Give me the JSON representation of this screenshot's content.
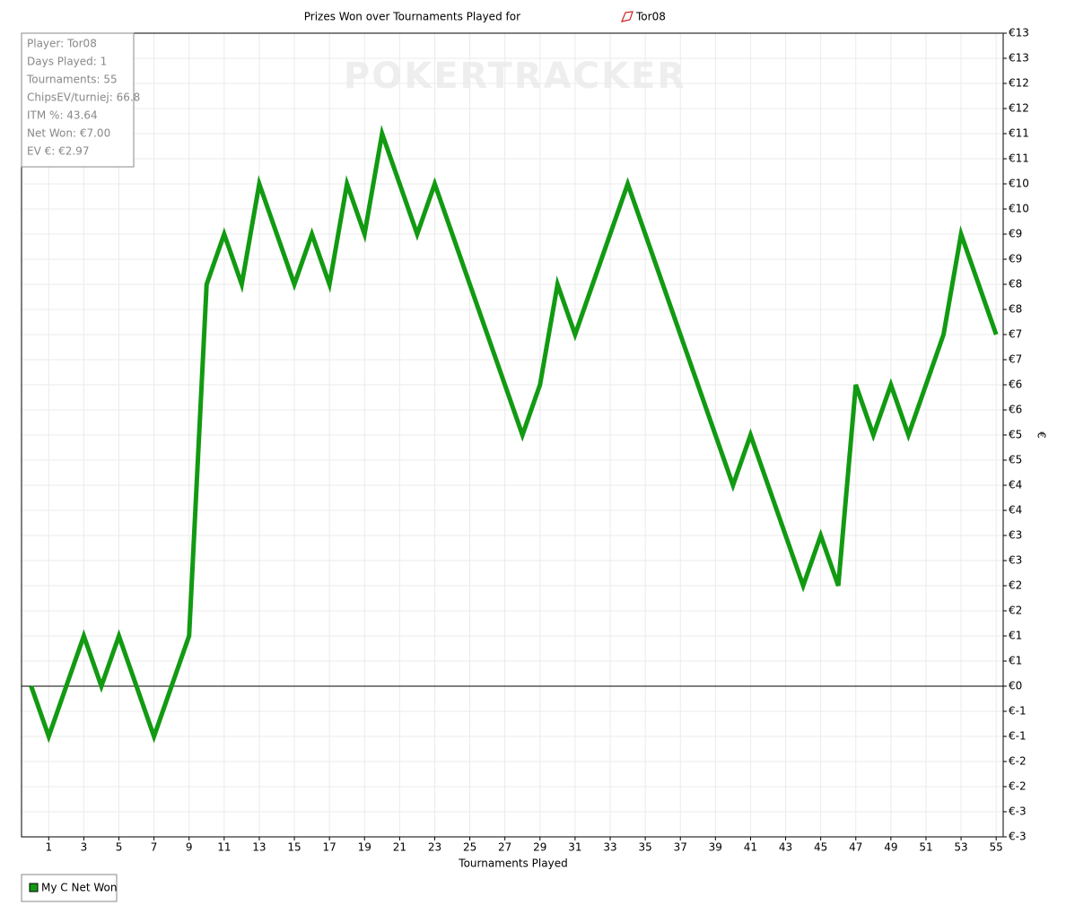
{
  "chart_data": {
    "type": "line",
    "title": "Prizes Won over Tournaments Played for",
    "title_player": "Tor08",
    "x_label": "Tournaments Played",
    "y_label": "€",
    "watermark": "POKERTRACKER",
    "info": [
      "Player: Tor08",
      "Days Played: 1",
      "Tournaments: 55",
      "ChipsEV/turniej: 66.8",
      "ITM %: 43.64",
      "Net Won: €7.00",
      "EV €: €2.97"
    ],
    "x": [
      0,
      1,
      2,
      3,
      4,
      5,
      6,
      7,
      8,
      9,
      10,
      11,
      12,
      13,
      14,
      15,
      16,
      17,
      18,
      19,
      20,
      21,
      22,
      23,
      24,
      25,
      26,
      27,
      28,
      29,
      30,
      31,
      32,
      33,
      34,
      35,
      36,
      37,
      38,
      39,
      40,
      41,
      42,
      43,
      44,
      45,
      46,
      47,
      48,
      49,
      50,
      51,
      52,
      53,
      54,
      55
    ],
    "series": [
      {
        "name": "My C Net Won",
        "color": "#129a12",
        "values": [
          0,
          -1,
          0,
          1,
          0,
          1,
          0,
          -1,
          0,
          1,
          8,
          9,
          8,
          10,
          9,
          8,
          9,
          8,
          10,
          9,
          11,
          10,
          9,
          10,
          9,
          8,
          7,
          6,
          5,
          6,
          8,
          7,
          8,
          9,
          10,
          9,
          8,
          7,
          6,
          5,
          4,
          5,
          4,
          3,
          2,
          3,
          2,
          6,
          5,
          6,
          5,
          6,
          7,
          9,
          8,
          7
        ]
      }
    ],
    "xlim": [
      -0.55,
      55.4
    ],
    "xticks": [
      1,
      3,
      5,
      7,
      9,
      11,
      13,
      15,
      17,
      19,
      21,
      23,
      25,
      27,
      29,
      31,
      33,
      35,
      37,
      39,
      41,
      43,
      45,
      47,
      49,
      51,
      53,
      55
    ],
    "ylim": [
      -3,
      13
    ],
    "yticks": [
      {
        "value": -3,
        "label": "€-3"
      },
      {
        "value": -2.5,
        "label": "€-3"
      },
      {
        "value": -2,
        "label": "€-2"
      },
      {
        "value": -1.5,
        "label": "€-2"
      },
      {
        "value": -1,
        "label": "€-1"
      },
      {
        "value": -0.5,
        "label": "€-1"
      },
      {
        "value": 0,
        "label": "€0"
      },
      {
        "value": 0.5,
        "label": "€1"
      },
      {
        "value": 1,
        "label": "€1"
      },
      {
        "value": 1.5,
        "label": "€2"
      },
      {
        "value": 2,
        "label": "€2"
      },
      {
        "value": 2.5,
        "label": "€3"
      },
      {
        "value": 3,
        "label": "€3"
      },
      {
        "value": 3.5,
        "label": "€4"
      },
      {
        "value": 4,
        "label": "€4"
      },
      {
        "value": 4.5,
        "label": "€5"
      },
      {
        "value": 5,
        "label": "€5"
      },
      {
        "value": 5.5,
        "label": "€6"
      },
      {
        "value": 6,
        "label": "€6"
      },
      {
        "value": 6.5,
        "label": "€7"
      },
      {
        "value": 7,
        "label": "€7"
      },
      {
        "value": 7.5,
        "label": "€8"
      },
      {
        "value": 8,
        "label": "€8"
      },
      {
        "value": 8.5,
        "label": "€9"
      },
      {
        "value": 9,
        "label": "€9"
      },
      {
        "value": 9.5,
        "label": "€10"
      },
      {
        "value": 10,
        "label": "€10"
      },
      {
        "value": 10.5,
        "label": "€11"
      },
      {
        "value": 11,
        "label": "€11"
      },
      {
        "value": 11.5,
        "label": "€12"
      },
      {
        "value": 12,
        "label": "€12"
      },
      {
        "value": 12.5,
        "label": "€13"
      },
      {
        "value": 13,
        "label": "€13"
      }
    ],
    "grid": true
  }
}
